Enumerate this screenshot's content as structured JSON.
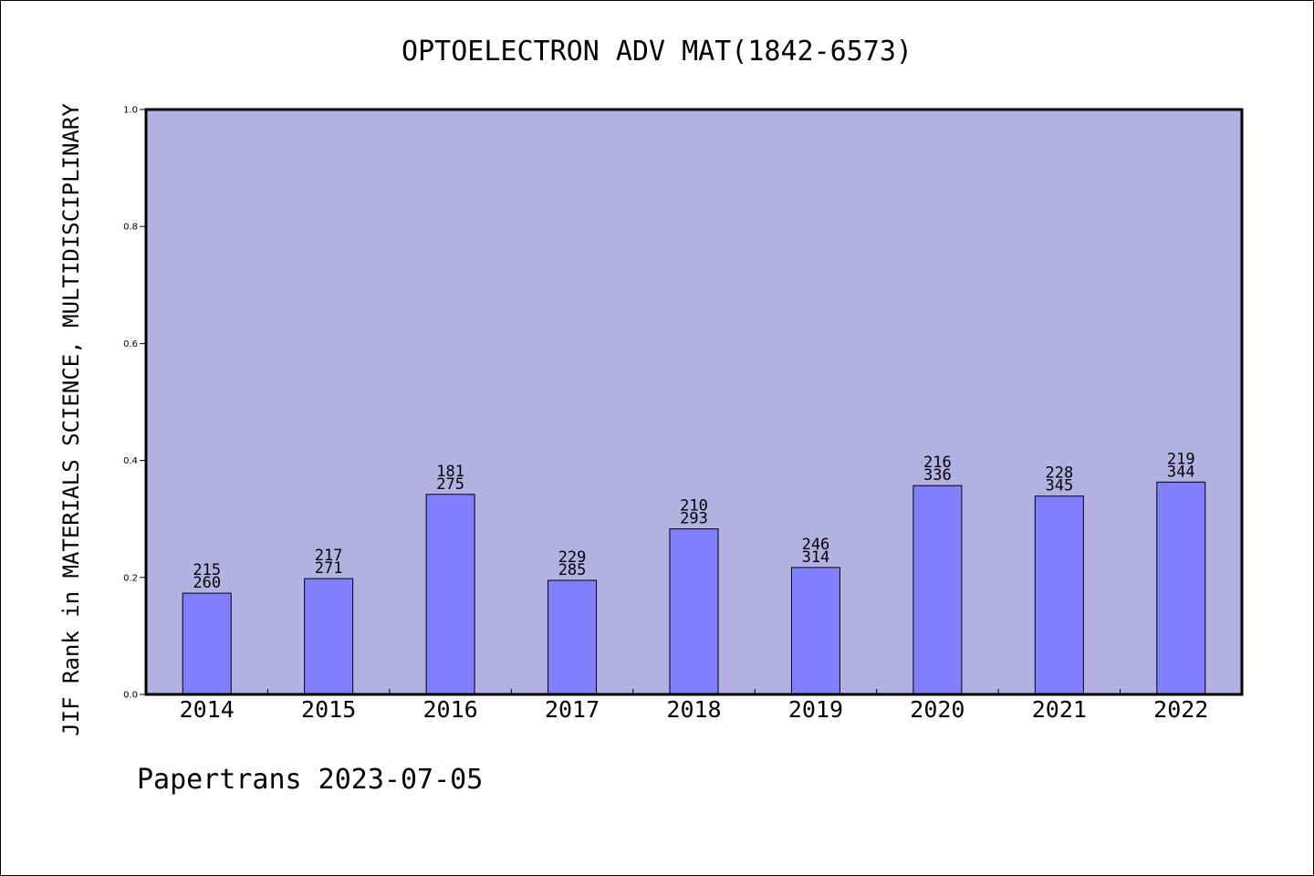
{
  "chart_data": {
    "type": "bar",
    "title": "OPTOELECTRON ADV MAT(1842-6573)",
    "xlabel": "",
    "ylabel": "JIF Rank in MATERIALS SCIENCE, MULTIDISCIPLINARY",
    "ylim": [
      0.0,
      1.0
    ],
    "yticks": [
      "0.0",
      "0.2",
      "0.4",
      "0.6",
      "0.8",
      "1.0"
    ],
    "categories": [
      "2014",
      "2015",
      "2016",
      "2017",
      "2018",
      "2019",
      "2020",
      "2021",
      "2022"
    ],
    "values": [
      0.173,
      0.198,
      0.342,
      0.195,
      0.283,
      0.217,
      0.357,
      0.339,
      0.363
    ],
    "rank_labels": [
      "215",
      "217",
      "181",
      "229",
      "210",
      "246",
      "216",
      "228",
      "219"
    ],
    "total_labels": [
      "260",
      "271",
      "275",
      "285",
      "293",
      "314",
      "336",
      "345",
      "344"
    ],
    "grid": false,
    "legend": "none",
    "colors": {
      "plot_background": "#b5b0e2",
      "bar_fill": "#8080ff",
      "bar_stroke": "#000000",
      "axis": "#000000",
      "text": "#000000"
    }
  },
  "footer": {
    "watermark": "Papertrans 2023-07-05"
  }
}
